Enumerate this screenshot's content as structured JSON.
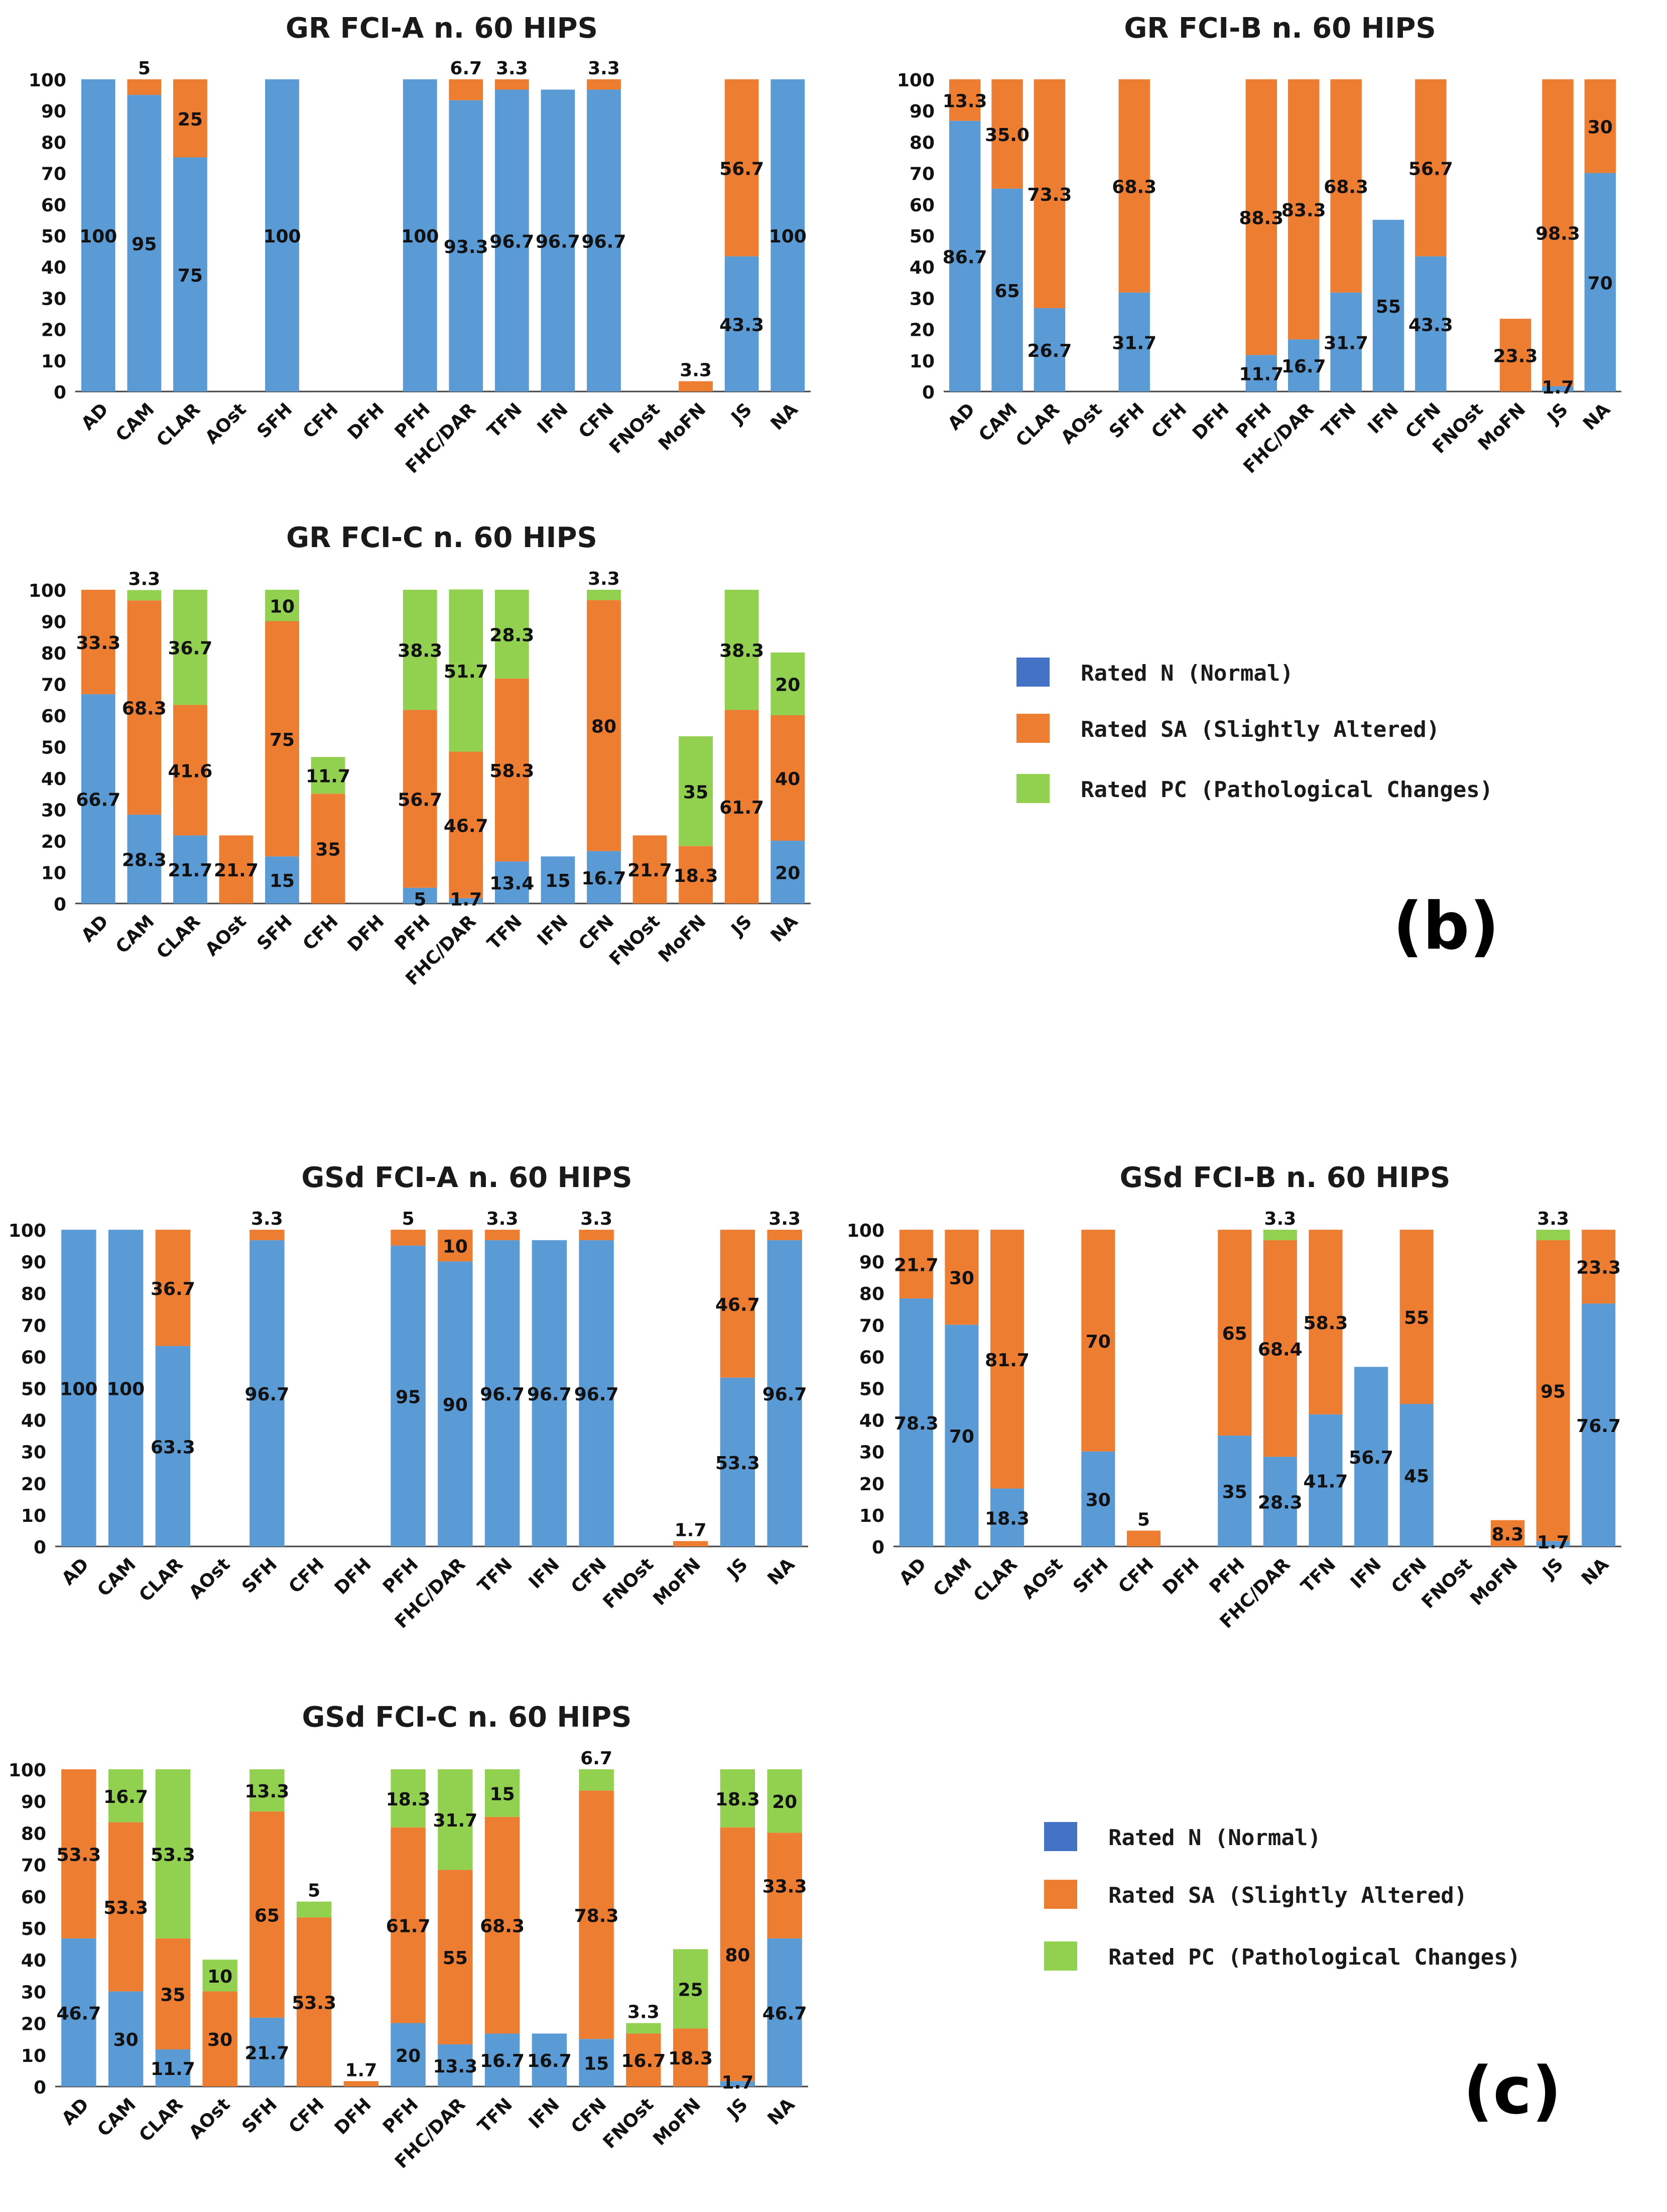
{
  "colors": {
    "N": "#5b9bd5",
    "SA": "#ed7d31",
    "PC": "#92d050",
    "legendN": "#4472c4",
    "axis": "#000000",
    "text": "#111111"
  },
  "legend": {
    "N": "Rated N (Normal)",
    "SA": "Rated SA (Slightly Altered)",
    "PC": "Rated PC (Pathological Changes)"
  },
  "panels": {
    "b": "(b)",
    "c": "(c)"
  },
  "chart_data": [
    {
      "id": "gr-fci-a",
      "type": "bar",
      "stacked": true,
      "title": "GR FCI-A n. 60 HIPS",
      "categories": [
        "AD",
        "CAM",
        "CLAR",
        "AOst",
        "SFH",
        "CFH",
        "DFH",
        "PFH",
        "FHC/DAR",
        "TFN",
        "IFN",
        "CFN",
        "FNOst",
        "MoFN",
        "JS",
        "NA"
      ],
      "ylim": [
        0,
        100
      ],
      "yticks": [
        0,
        10,
        20,
        30,
        40,
        50,
        60,
        70,
        80,
        90,
        100
      ],
      "series": [
        {
          "name": "Rated N (Normal)",
          "key": "N",
          "values": [
            100,
            95,
            75,
            null,
            100,
            null,
            null,
            100,
            93.3,
            96.7,
            96.7,
            96.7,
            null,
            null,
            43.3,
            100
          ]
        },
        {
          "name": "Rated SA (Slightly Altered)",
          "key": "SA",
          "values": [
            null,
            5,
            25,
            null,
            null,
            null,
            null,
            null,
            6.7,
            3.3,
            null,
            3.3,
            null,
            3.3,
            56.7,
            null
          ]
        },
        {
          "name": "Rated PC (Pathological Changes)",
          "key": "PC",
          "values": [
            null,
            null,
            null,
            null,
            null,
            null,
            null,
            null,
            null,
            null,
            null,
            null,
            null,
            null,
            null,
            null
          ]
        }
      ]
    },
    {
      "id": "gr-fci-b",
      "type": "bar",
      "stacked": true,
      "title": "GR FCI-B n. 60 HIPS",
      "categories": [
        "AD",
        "CAM",
        "CLAR",
        "AOst",
        "SFH",
        "CFH",
        "DFH",
        "PFH",
        "FHC/DAR",
        "TFN",
        "IFN",
        "CFN",
        "FNOst",
        "MoFN",
        "JS",
        "NA"
      ],
      "ylim": [
        0,
        100
      ],
      "yticks": [
        0,
        10,
        20,
        30,
        40,
        50,
        60,
        70,
        80,
        90,
        100
      ],
      "series": [
        {
          "name": "Rated N (Normal)",
          "key": "N",
          "values": [
            86.7,
            65,
            26.7,
            null,
            31.7,
            null,
            null,
            11.7,
            16.7,
            31.7,
            55,
            43.3,
            null,
            null,
            1.7,
            70
          ]
        },
        {
          "name": "Rated SA (Slightly Altered)",
          "key": "SA",
          "values": [
            "13.3",
            "35.0",
            73.3,
            null,
            68.3,
            null,
            null,
            88.3,
            83.3,
            68.3,
            null,
            56.7,
            null,
            23.3,
            98.3,
            30
          ]
        },
        {
          "name": "Rated PC (Pathological Changes)",
          "key": "PC",
          "values": [
            null,
            null,
            null,
            null,
            null,
            null,
            null,
            null,
            null,
            null,
            null,
            null,
            null,
            null,
            null,
            null
          ]
        }
      ]
    },
    {
      "id": "gr-fci-c",
      "type": "bar",
      "stacked": true,
      "title": "GR FCI-C n. 60 HIPS",
      "categories": [
        "AD",
        "CAM",
        "CLAR",
        "AOst",
        "SFH",
        "CFH",
        "DFH",
        "PFH",
        "FHC/DAR",
        "TFN",
        "IFN",
        "CFN",
        "FNOst",
        "MoFN",
        "JS",
        "NA"
      ],
      "ylim": [
        0,
        100
      ],
      "yticks": [
        0,
        10,
        20,
        30,
        40,
        50,
        60,
        70,
        80,
        90,
        100
      ],
      "series": [
        {
          "name": "Rated N (Normal)",
          "key": "N",
          "values": [
            66.7,
            28.3,
            21.7,
            null,
            15,
            null,
            null,
            5,
            1.7,
            13.4,
            15,
            16.7,
            null,
            null,
            null,
            20
          ]
        },
        {
          "name": "Rated SA (Slightly Altered)",
          "key": "SA",
          "values": [
            33.3,
            68.3,
            41.6,
            21.7,
            75,
            35,
            null,
            56.7,
            46.7,
            58.3,
            null,
            80,
            21.7,
            18.3,
            61.7,
            40
          ]
        },
        {
          "name": "Rated PC (Pathological Changes)",
          "key": "PC",
          "values": [
            null,
            3.3,
            36.7,
            null,
            10,
            11.7,
            null,
            38.3,
            51.7,
            28.3,
            null,
            3.3,
            null,
            35,
            38.3,
            20
          ]
        }
      ]
    },
    {
      "id": "gsd-fci-a",
      "type": "bar",
      "stacked": true,
      "title": "GSd FCI-A n. 60 HIPS",
      "categories": [
        "AD",
        "CAM",
        "CLAR",
        "AOst",
        "SFH",
        "CFH",
        "DFH",
        "PFH",
        "FHC/DAR",
        "TFN",
        "IFN",
        "CFN",
        "FNOst",
        "MoFN",
        "JS",
        "NA"
      ],
      "ylim": [
        0,
        100
      ],
      "yticks": [
        0,
        10,
        20,
        30,
        40,
        50,
        60,
        70,
        80,
        90,
        100
      ],
      "series": [
        {
          "name": "Rated N (Normal)",
          "key": "N",
          "values": [
            100,
            100,
            63.3,
            null,
            96.7,
            null,
            null,
            95,
            90,
            96.7,
            96.7,
            96.7,
            null,
            null,
            53.3,
            96.7
          ]
        },
        {
          "name": "Rated SA (Slightly Altered)",
          "key": "SA",
          "values": [
            null,
            null,
            36.7,
            null,
            3.3,
            null,
            null,
            5,
            10,
            3.3,
            null,
            3.3,
            null,
            1.7,
            46.7,
            3.3
          ]
        },
        {
          "name": "Rated PC (Pathological Changes)",
          "key": "PC",
          "values": [
            null,
            null,
            null,
            null,
            null,
            null,
            null,
            null,
            null,
            null,
            null,
            null,
            null,
            null,
            null,
            null
          ]
        }
      ]
    },
    {
      "id": "gsd-fci-b",
      "type": "bar",
      "stacked": true,
      "title": "GSd FCI-B n. 60 HIPS",
      "categories": [
        "AD",
        "CAM",
        "CLAR",
        "AOst",
        "SFH",
        "CFH",
        "DFH",
        "PFH",
        "FHC/DAR",
        "TFN",
        "IFN",
        "CFN",
        "FNOst",
        "MoFN",
        "JS",
        "NA"
      ],
      "ylim": [
        0,
        100
      ],
      "yticks": [
        0,
        10,
        20,
        30,
        40,
        50,
        60,
        70,
        80,
        90,
        100
      ],
      "series": [
        {
          "name": "Rated N (Normal)",
          "key": "N",
          "values": [
            78.3,
            70,
            18.3,
            null,
            30,
            null,
            null,
            35,
            28.3,
            41.7,
            56.7,
            45,
            null,
            null,
            1.7,
            76.7
          ]
        },
        {
          "name": "Rated SA (Slightly Altered)",
          "key": "SA",
          "values": [
            21.7,
            30,
            81.7,
            null,
            70,
            5,
            null,
            65,
            68.4,
            58.3,
            null,
            55,
            null,
            8.3,
            95,
            23.3
          ]
        },
        {
          "name": "Rated PC (Pathological Changes)",
          "key": "PC",
          "values": [
            null,
            null,
            null,
            null,
            null,
            null,
            null,
            null,
            3.3,
            null,
            null,
            null,
            null,
            null,
            3.3,
            null
          ]
        }
      ]
    },
    {
      "id": "gsd-fci-c",
      "type": "bar",
      "stacked": true,
      "title": "GSd FCI-C n. 60 HIPS",
      "categories": [
        "AD",
        "CAM",
        "CLAR",
        "AOst",
        "SFH",
        "CFH",
        "DFH",
        "PFH",
        "FHC/DAR",
        "TFN",
        "IFN",
        "CFN",
        "FNOst",
        "MoFN",
        "JS",
        "NA"
      ],
      "ylim": [
        0,
        100
      ],
      "yticks": [
        0,
        10,
        20,
        30,
        40,
        50,
        60,
        70,
        80,
        90,
        100
      ],
      "series": [
        {
          "name": "Rated N (Normal)",
          "key": "N",
          "values": [
            46.7,
            30,
            11.7,
            null,
            21.7,
            null,
            null,
            20,
            13.3,
            16.7,
            16.7,
            15,
            null,
            null,
            1.7,
            46.7
          ]
        },
        {
          "name": "Rated SA (Slightly Altered)",
          "key": "SA",
          "values": [
            53.3,
            53.3,
            35,
            30,
            65,
            53.3,
            1.7,
            61.7,
            55,
            68.3,
            null,
            78.3,
            16.7,
            18.3,
            80,
            33.3
          ]
        },
        {
          "name": "Rated PC (Pathological Changes)",
          "key": "PC",
          "values": [
            null,
            16.7,
            53.3,
            10,
            13.3,
            5,
            null,
            18.3,
            31.7,
            15,
            null,
            6.7,
            3.3,
            25,
            18.3,
            20
          ]
        }
      ]
    }
  ]
}
